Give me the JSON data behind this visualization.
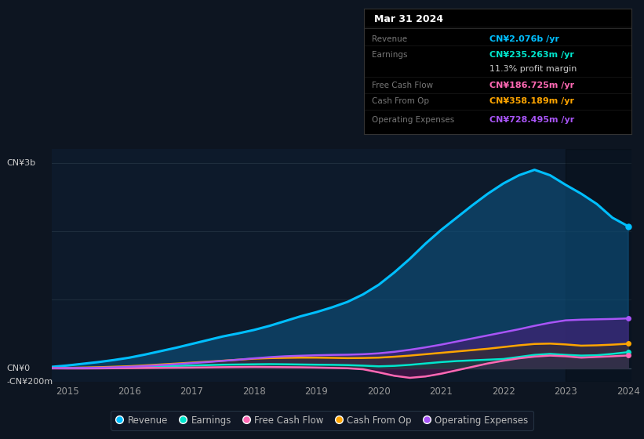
{
  "bg_color": "#0d1521",
  "chart_bg": "#0d1a2b",
  "ylabel_top": "CN¥3b",
  "ylabel_zero": "CN¥0",
  "ylabel_neg": "-CN¥200m",
  "ylim": [
    -200,
    3200
  ],
  "years": [
    2014.75,
    2015.0,
    2015.25,
    2015.5,
    2015.75,
    2016.0,
    2016.25,
    2016.5,
    2016.75,
    2017.0,
    2017.25,
    2017.5,
    2017.75,
    2018.0,
    2018.25,
    2018.5,
    2018.75,
    2019.0,
    2019.25,
    2019.5,
    2019.75,
    2020.0,
    2020.25,
    2020.5,
    2020.75,
    2021.0,
    2021.25,
    2021.5,
    2021.75,
    2022.0,
    2022.25,
    2022.5,
    2022.75,
    2023.0,
    2023.25,
    2023.5,
    2023.75,
    2024.0
  ],
  "revenue": [
    20,
    40,
    65,
    90,
    120,
    155,
    200,
    250,
    300,
    355,
    410,
    465,
    510,
    560,
    620,
    690,
    760,
    820,
    890,
    970,
    1080,
    1220,
    1400,
    1600,
    1820,
    2020,
    2200,
    2380,
    2550,
    2700,
    2820,
    2900,
    2820,
    2680,
    2550,
    2400,
    2200,
    2076
  ],
  "earnings": [
    2,
    3,
    5,
    8,
    12,
    16,
    22,
    28,
    34,
    40,
    46,
    52,
    55,
    58,
    60,
    58,
    55,
    52,
    50,
    46,
    38,
    28,
    35,
    50,
    70,
    90,
    105,
    115,
    125,
    135,
    165,
    195,
    210,
    195,
    185,
    190,
    210,
    235
  ],
  "free_cash": [
    -2,
    -3,
    -3,
    -2,
    0,
    2,
    4,
    6,
    8,
    10,
    13,
    16,
    18,
    20,
    18,
    16,
    14,
    10,
    5,
    0,
    -15,
    -60,
    -110,
    -140,
    -120,
    -80,
    -30,
    20,
    70,
    110,
    145,
    170,
    185,
    175,
    155,
    165,
    175,
    187
  ],
  "cash_from_op": [
    3,
    5,
    10,
    15,
    22,
    30,
    42,
    55,
    68,
    82,
    96,
    110,
    125,
    140,
    148,
    152,
    155,
    155,
    152,
    148,
    150,
    155,
    168,
    185,
    205,
    225,
    245,
    265,
    285,
    310,
    335,
    355,
    360,
    348,
    330,
    335,
    345,
    358
  ],
  "op_expenses": [
    2,
    3,
    5,
    8,
    14,
    22,
    33,
    46,
    60,
    75,
    90,
    108,
    125,
    145,
    162,
    175,
    183,
    190,
    195,
    198,
    205,
    218,
    240,
    270,
    305,
    345,
    390,
    435,
    480,
    525,
    570,
    620,
    665,
    700,
    710,
    715,
    720,
    728
  ],
  "highlight_start": 2023.0,
  "highlight_end": 2024.1,
  "revenue_color": "#00bfff",
  "earnings_color": "#00e5cc",
  "free_cash_color": "#ff69b4",
  "cash_from_op_color": "#ffa500",
  "op_expenses_color": "#a855f7",
  "revenue_fill": "#0d4f7a",
  "op_expenses_fill": "#4a1d7a",
  "free_cash_fill": "#6d1060",
  "cash_from_op_fill": "#3a3000",
  "earnings_fill": "#0a4a40",
  "info_box": {
    "title": "Mar 31 2024",
    "bg": "#000000",
    "border": "#333333",
    "rows": [
      {
        "label": "Revenue",
        "value": "CN¥2.076b /yr",
        "color": "#00bfff",
        "bold_value": true
      },
      {
        "label": "Earnings",
        "value": "CN¥235.263m /yr",
        "color": "#00e5cc",
        "bold_value": true
      },
      {
        "label": "",
        "value": "11.3% profit margin",
        "color": "#cccccc",
        "bold_value": false
      },
      {
        "label": "Free Cash Flow",
        "value": "CN¥186.725m /yr",
        "color": "#ff69b4",
        "bold_value": true
      },
      {
        "label": "Cash From Op",
        "value": "CN¥358.189m /yr",
        "color": "#ffa500",
        "bold_value": true
      },
      {
        "label": "Operating Expenses",
        "value": "CN¥728.495m /yr",
        "color": "#a855f7",
        "bold_value": true
      }
    ]
  },
  "legend": [
    {
      "label": "Revenue",
      "color": "#00bfff"
    },
    {
      "label": "Earnings",
      "color": "#00e5cc"
    },
    {
      "label": "Free Cash Flow",
      "color": "#ff69b4"
    },
    {
      "label": "Cash From Op",
      "color": "#ffa500"
    },
    {
      "label": "Operating Expenses",
      "color": "#a855f7"
    }
  ],
  "xtick_years": [
    2015,
    2016,
    2017,
    2018,
    2019,
    2020,
    2021,
    2022,
    2023,
    2024
  ],
  "gridline_color": "#1e2d3d",
  "gridline_y": [
    0,
    1000,
    2000,
    3000
  ],
  "zero_line_color": "#3a4a5a"
}
